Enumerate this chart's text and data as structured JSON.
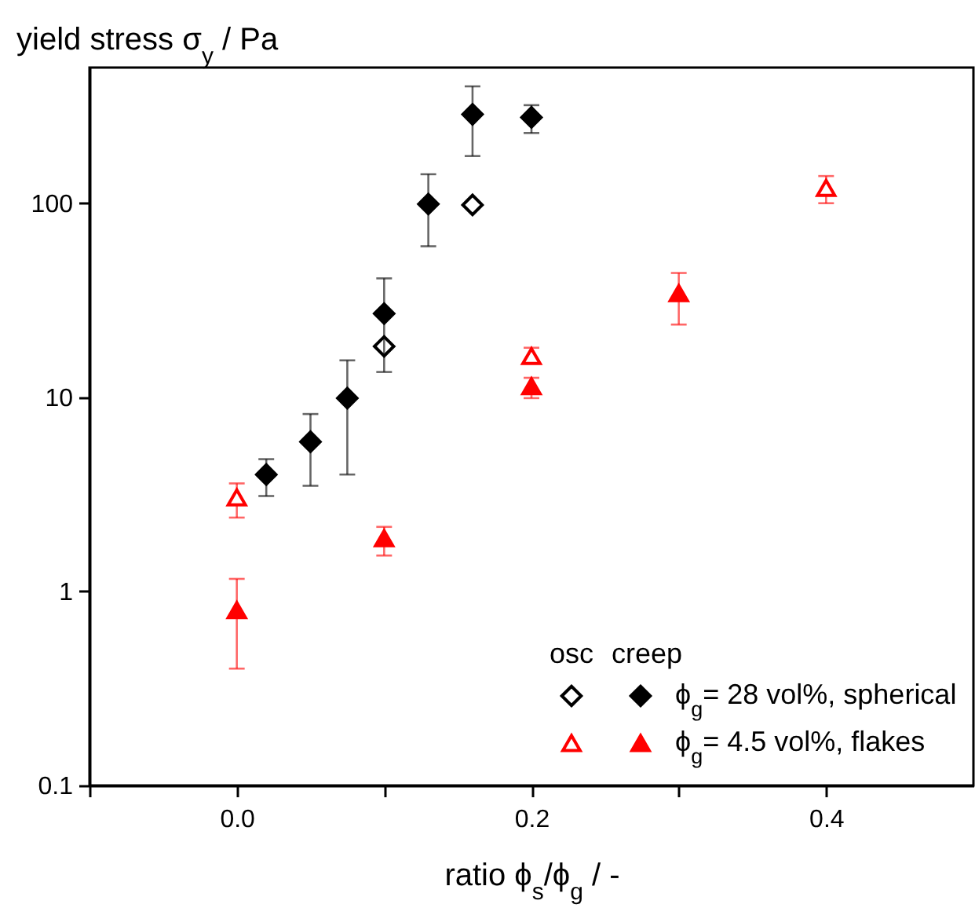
{
  "chart_data": {
    "type": "scatter",
    "xlabel": "ratio ϕ$_{s}$/ϕ$_{g}$ / -",
    "ylabel": "yield stress σ$_{y}$ / Pa",
    "xlim": [
      -0.1,
      0.5
    ],
    "xticks": [
      {
        "value": -0.1,
        "label": null
      },
      {
        "value": 0.0,
        "label": "0.0"
      },
      {
        "value": 0.1,
        "label": null
      },
      {
        "value": 0.2,
        "label": "0.2"
      },
      {
        "value": 0.3,
        "label": null
      },
      {
        "value": 0.4,
        "label": "0.4"
      }
    ],
    "ylim": [
      0.1,
      500
    ],
    "yticks": [
      {
        "value": 0.1,
        "label": "0.1"
      },
      1,
      10,
      100
    ],
    "log": "y",
    "grid": false,
    "legend": "bottom right",
    "annotations": [
      "osc",
      "creep"
    ],
    "series": [
      {
        "color": "#000000",
        "marker": "diamond",
        "x": [
          0.1,
          0.16
        ],
        "values": [
          18.3,
          98
        ]
      },
      {
        "name": "ϕ$_{g}$= 28 vol%, spherical",
        "color": "#000000",
        "marker": "diamond",
        "x": [
          0.02,
          0.05,
          0.075,
          0.1,
          0.13,
          0.16,
          0.2
        ],
        "values": [
          4,
          5.9,
          9.9,
          27,
          99,
          287,
          277
        ],
        "errors": [
          [
            3.1,
            4.8
          ],
          [
            3.5,
            8.2
          ],
          [
            4,
            15.5
          ],
          [
            13.5,
            41
          ],
          [
            60,
            141
          ],
          [
            175,
            400
          ],
          [
            230,
            320
          ]
        ]
      },
      {
        "color": "#ff0000",
        "marker": "triangle",
        "x": [
          0,
          0.2,
          0.4
        ],
        "values": [
          3.05,
          16.3,
          120
        ],
        "errors": [
          [
            2.4,
            3.6
          ],
          [
            15,
            18
          ],
          [
            100,
            138
          ]
        ]
      },
      {
        "name": "ϕ$_{g}$= 4.5 vol%, flakes",
        "color": "#ff0000",
        "marker": "triangle",
        "x": [
          0,
          0.1,
          0.2,
          0.3
        ],
        "values": [
          0.8,
          1.88,
          11.4,
          34.4
        ],
        "errors": [
          [
            0.4,
            1.16
          ],
          [
            1.53,
            2.15
          ],
          [
            9.9,
            12.6
          ],
          [
            23.7,
            43.7
          ]
        ]
      }
    ]
  }
}
